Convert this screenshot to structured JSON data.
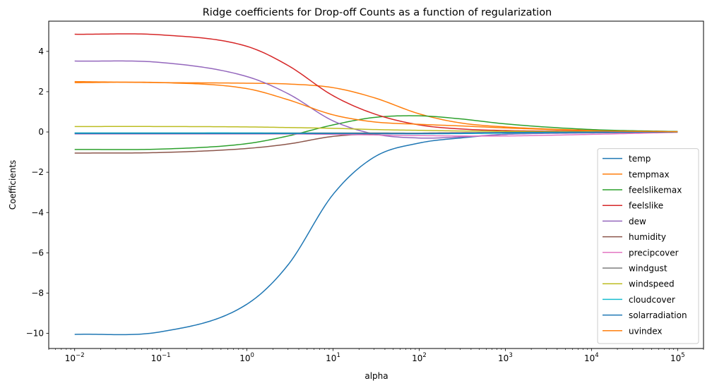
{
  "chart_data": {
    "type": "line",
    "title": "Ridge coefficients for Drop-off Counts as a function of regularization",
    "xlabel": "alpha",
    "ylabel": "Coefficients",
    "xscale": "log",
    "xlim": [
      0.005,
      200000
    ],
    "ylim": [
      -10.75,
      5.5
    ],
    "xticks": [
      {
        "value": 0.01,
        "base": "10",
        "exp": "−2"
      },
      {
        "value": 0.1,
        "base": "10",
        "exp": "−1"
      },
      {
        "value": 1,
        "base": "10",
        "exp": "0"
      },
      {
        "value": 10,
        "base": "10",
        "exp": "1"
      },
      {
        "value": 100,
        "base": "10",
        "exp": "2"
      },
      {
        "value": 1000,
        "base": "10",
        "exp": "3"
      },
      {
        "value": 10000,
        "base": "10",
        "exp": "4"
      },
      {
        "value": 100000,
        "base": "10",
        "exp": "5"
      }
    ],
    "yticks": [
      {
        "value": -10,
        "label": "−10"
      },
      {
        "value": -8,
        "label": "−8"
      },
      {
        "value": -6,
        "label": "−6"
      },
      {
        "value": -4,
        "label": "−4"
      },
      {
        "value": -2,
        "label": "−2"
      },
      {
        "value": 0,
        "label": "0"
      },
      {
        "value": 2,
        "label": "2"
      },
      {
        "value": 4,
        "label": "4"
      }
    ],
    "grid": false,
    "legend_position": "lower-right",
    "x": [
      0.01,
      0.1,
      1,
      3,
      10,
      30,
      100,
      300,
      1000,
      10000,
      100000
    ],
    "series": [
      {
        "name": "temp",
        "color": "#1f77b4",
        "values": [
          -10.05,
          -9.92,
          -8.55,
          -6.6,
          -3.1,
          -1.25,
          -0.55,
          -0.3,
          -0.12,
          0.0,
          0.02
        ]
      },
      {
        "name": "tempmax",
        "color": "#ff7f0e",
        "values": [
          2.5,
          2.45,
          2.42,
          2.38,
          2.2,
          1.7,
          0.9,
          0.45,
          0.25,
          0.08,
          0.02
        ]
      },
      {
        "name": "feelslikemax",
        "color": "#2ca02c",
        "values": [
          -0.87,
          -0.85,
          -0.58,
          -0.2,
          0.35,
          0.72,
          0.8,
          0.65,
          0.4,
          0.12,
          0.02
        ]
      },
      {
        "name": "feelslike",
        "color": "#d62728",
        "values": [
          4.85,
          4.82,
          4.25,
          3.3,
          1.8,
          0.9,
          0.35,
          0.15,
          0.07,
          0.03,
          0.01
        ]
      },
      {
        "name": "dew",
        "color": "#9467bd",
        "values": [
          3.52,
          3.45,
          2.75,
          1.9,
          0.55,
          -0.1,
          -0.3,
          -0.25,
          -0.12,
          -0.05,
          -0.01
        ]
      },
      {
        "name": "humidity",
        "color": "#8c564b",
        "values": [
          -1.05,
          -1.02,
          -0.82,
          -0.6,
          -0.22,
          -0.1,
          -0.06,
          -0.04,
          -0.03,
          -0.01,
          0.0
        ]
      },
      {
        "name": "precipcover",
        "color": "#e377c2",
        "values": [
          -0.1,
          -0.1,
          -0.1,
          -0.1,
          -0.12,
          -0.15,
          -0.18,
          -0.2,
          -0.2,
          -0.12,
          -0.02
        ]
      },
      {
        "name": "windgust",
        "color": "#7f7f7f",
        "values": [
          -0.05,
          -0.05,
          -0.05,
          -0.05,
          -0.05,
          -0.05,
          -0.06,
          -0.06,
          -0.05,
          -0.02,
          0.0
        ]
      },
      {
        "name": "windspeed",
        "color": "#bcbd22",
        "values": [
          0.27,
          0.27,
          0.25,
          0.22,
          0.18,
          0.12,
          0.08,
          0.05,
          0.03,
          0.01,
          0.0
        ]
      },
      {
        "name": "cloudcover",
        "color": "#17becf",
        "values": [
          -0.05,
          -0.05,
          -0.05,
          -0.06,
          -0.07,
          -0.08,
          -0.09,
          -0.08,
          -0.06,
          -0.02,
          0.0
        ]
      },
      {
        "name": "solarradiation",
        "color": "#1f77b4",
        "values": [
          -0.08,
          -0.08,
          -0.08,
          -0.08,
          -0.08,
          -0.08,
          -0.08,
          -0.06,
          -0.03,
          -0.01,
          0.0
        ]
      },
      {
        "name": "uvindex",
        "color": "#ff7f0e",
        "values": [
          2.45,
          2.45,
          2.15,
          1.6,
          0.85,
          0.5,
          0.38,
          0.3,
          0.2,
          0.06,
          0.01
        ]
      }
    ]
  }
}
